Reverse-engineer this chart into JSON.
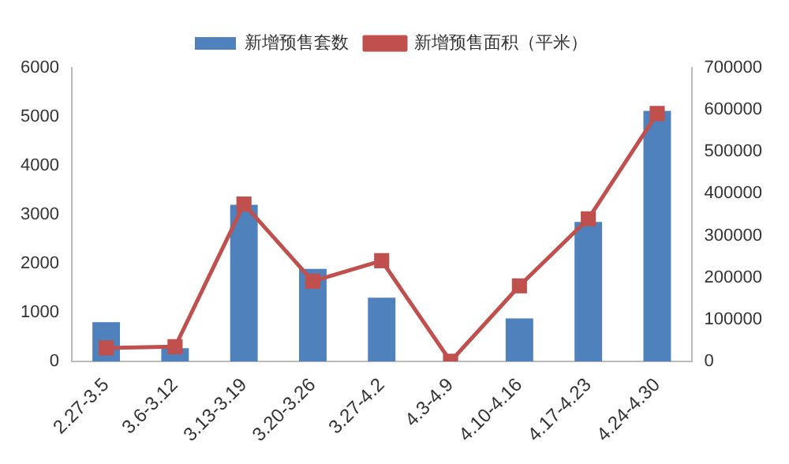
{
  "chart_data": {
    "type": "bar",
    "categories": [
      "2.27-3.5",
      "3.6-3.12",
      "3.13-3.19",
      "3.20-3.26",
      "3.27-4.2",
      "4.3-4.9",
      "4.10-4.16",
      "4.17-4.23",
      "4.24-4.30"
    ],
    "series": [
      {
        "name": "新增预售套数",
        "color": "#4f81bd",
        "values": [
          800,
          270,
          3200,
          1890,
          1300,
          0,
          880,
          2850,
          5120
        ]
      },
      {
        "name": "新增预售面积（平米）",
        "type": "line",
        "axis": "y2",
        "color": "#c0504d",
        "marker": "square",
        "values": [
          32000,
          35000,
          375000,
          191000,
          240000,
          0,
          180000,
          340000,
          591000
        ]
      }
    ],
    "ylim": [
      0,
      6000
    ],
    "yticks": [
      0,
      1000,
      2000,
      3000,
      4000,
      5000,
      6000
    ],
    "y2lim": [
      0,
      700000
    ],
    "y2ticks": [
      0,
      100000,
      200000,
      300000,
      400000,
      500000,
      600000,
      700000
    ],
    "grid": false,
    "legend": "top"
  }
}
